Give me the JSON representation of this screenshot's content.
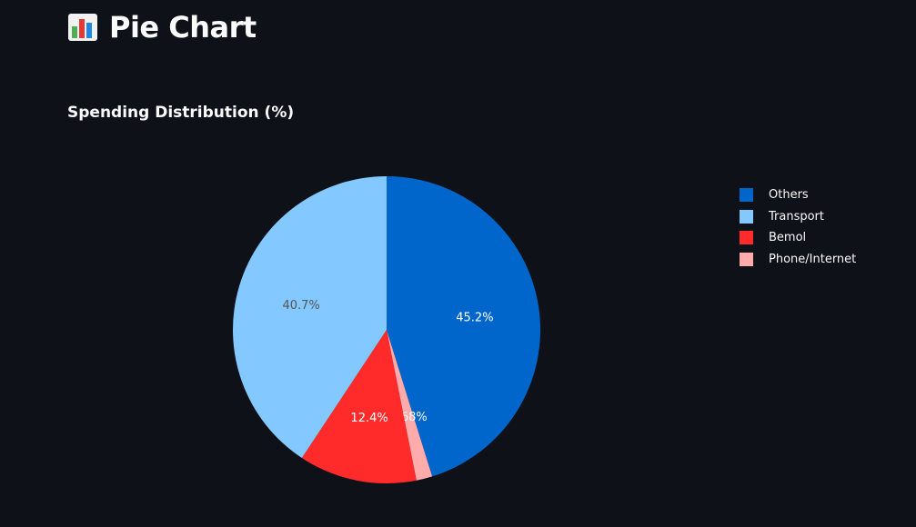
{
  "header": {
    "title": "Pie Chart",
    "icon": "bar-chart-emoji-icon"
  },
  "chart_data": {
    "type": "pie",
    "title": "Spending Distribution (%)",
    "legend_position": "right",
    "slices": [
      {
        "label": "Others",
        "value": 45.2,
        "display": "45.2%",
        "color": "#0066cc",
        "text_color": "#ffffff"
      },
      {
        "label": "Phone/Internet",
        "value": 1.68,
        "display": "1.68%",
        "color": "#ffabab",
        "text_color": "#ffffff"
      },
      {
        "label": "Bemol",
        "value": 12.4,
        "display": "12.4%",
        "color": "#ff2b2b",
        "text_color": "#ffffff"
      },
      {
        "label": "Transport",
        "value": 40.7,
        "display": "40.7%",
        "color": "#83c9ff",
        "text_color": "#555555"
      }
    ],
    "legend": [
      {
        "label": "Others",
        "color": "#0066cc"
      },
      {
        "label": "Transport",
        "color": "#83c9ff"
      },
      {
        "label": "Bemol",
        "color": "#ff2b2b"
      },
      {
        "label": "Phone/Internet",
        "color": "#ffabab"
      }
    ]
  }
}
